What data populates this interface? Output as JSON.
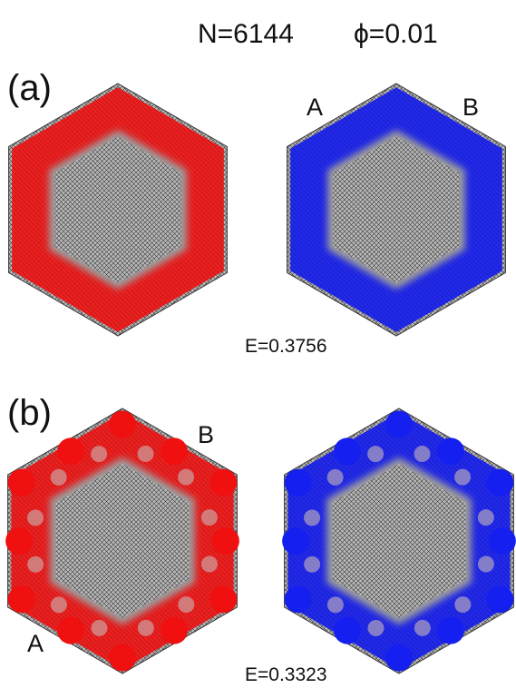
{
  "header": {
    "n": "N=6144",
    "phi": "ϕ=0.01"
  },
  "panels": [
    {
      "label": "(a)",
      "site_labels": [
        "A",
        "B"
      ],
      "energy": "E=0.3756"
    },
    {
      "label": "(b)",
      "site_labels": [
        "B",
        "A"
      ],
      "energy": "E=0.3323"
    }
  ]
}
